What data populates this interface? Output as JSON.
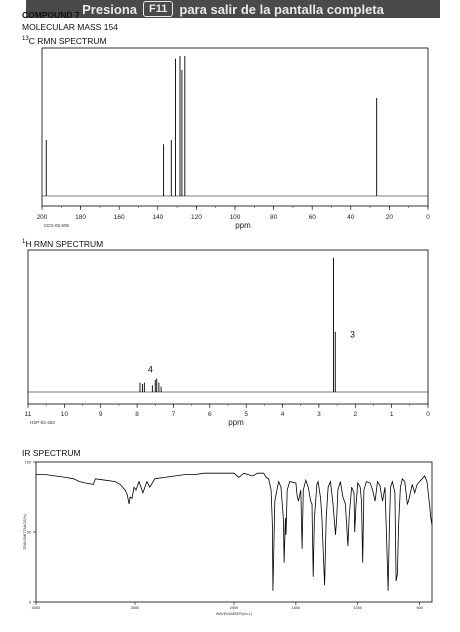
{
  "fullscreen_banner": {
    "prefix": "Presiona",
    "key": "F11",
    "suffix": "para salir de la pantalla completa"
  },
  "header": {
    "compound": "COMPOUND 7",
    "molecular_mass": "MOLECULAR MASS 154",
    "c13_sup": "13",
    "c13_title": "C RMN SPECTRUM",
    "h1_sup": "1",
    "h1_title": "H RMN SPECTRUM",
    "ir_title": "IR SPECTRUM"
  },
  "chart_data": [
    {
      "type": "line",
      "name": "13C NMR",
      "xlabel": "ppm",
      "xlim": [
        200,
        0
      ],
      "x_ticks": [
        200,
        180,
        160,
        140,
        120,
        100,
        80,
        60,
        40,
        20,
        0
      ],
      "code": "CDS-05-605",
      "peaks": [
        {
          "x": 197.8,
          "h": 0.4
        },
        {
          "x": 137.0,
          "h": 0.37
        },
        {
          "x": 133.0,
          "h": 0.4
        },
        {
          "x": 130.8,
          "h": 0.98
        },
        {
          "x": 128.5,
          "h": 1.0
        },
        {
          "x": 127.5,
          "h": 0.9
        },
        {
          "x": 126.0,
          "h": 1.0
        },
        {
          "x": 26.6,
          "h": 0.7
        }
      ],
      "grid": false
    },
    {
      "type": "line",
      "name": "1H NMR",
      "xlabel": "ppm",
      "xlim": [
        11,
        0
      ],
      "x_ticks": [
        11,
        10,
        9,
        8,
        7,
        6,
        5,
        4,
        3,
        2,
        1,
        0
      ],
      "code": "HSP-02-453",
      "peaks": [
        {
          "x": 7.92,
          "h": 0.07
        },
        {
          "x": 7.85,
          "h": 0.06
        },
        {
          "x": 7.8,
          "h": 0.07
        },
        {
          "x": 7.58,
          "h": 0.05
        },
        {
          "x": 7.5,
          "h": 0.09
        },
        {
          "x": 7.46,
          "h": 0.1
        },
        {
          "x": 7.4,
          "h": 0.07
        },
        {
          "x": 7.34,
          "h": 0.04
        },
        {
          "x": 2.6,
          "h": 1.0
        },
        {
          "x": 2.55,
          "h": 0.45
        }
      ],
      "annotations": [
        {
          "label": "4",
          "x": 7.8
        },
        {
          "label": "3",
          "x": 2.35
        }
      ],
      "grid": false
    },
    {
      "type": "line",
      "name": "IR",
      "xlim": [
        4000,
        400
      ],
      "ylim": [
        0,
        100
      ],
      "x_ticks": [
        4000,
        3000,
        2000,
        1500,
        1000,
        500
      ],
      "y_ticks": [
        0,
        50,
        100
      ],
      "xlabel": "WAVENUMBER(cm-1)",
      "ylabel": "TRANSMITTANCE(%)",
      "points": [
        [
          4000,
          91
        ],
        [
          3900,
          91
        ],
        [
          3800,
          90
        ],
        [
          3700,
          89
        ],
        [
          3620,
          88
        ],
        [
          3560,
          86
        ],
        [
          3500,
          85
        ],
        [
          3420,
          84
        ],
        [
          3400,
          88
        ],
        [
          3300,
          87
        ],
        [
          3200,
          86
        ],
        [
          3150,
          84
        ],
        [
          3100,
          80
        ],
        [
          3080,
          77
        ],
        [
          3060,
          70
        ],
        [
          3050,
          75
        ],
        [
          3030,
          74
        ],
        [
          3010,
          82
        ],
        [
          2990,
          80
        ],
        [
          2960,
          86
        ],
        [
          2920,
          78
        ],
        [
          2880,
          86
        ],
        [
          2850,
          82
        ],
        [
          2800,
          88
        ],
        [
          2700,
          89
        ],
        [
          2600,
          90
        ],
        [
          2500,
          91
        ],
        [
          2400,
          91
        ],
        [
          2300,
          92
        ],
        [
          2200,
          92
        ],
        [
          2100,
          92
        ],
        [
          2000,
          92
        ],
        [
          1960,
          89
        ],
        [
          1920,
          92
        ],
        [
          1850,
          90
        ],
        [
          1810,
          92
        ],
        [
          1760,
          92
        ],
        [
          1740,
          89
        ],
        [
          1720,
          88
        ],
        [
          1700,
          80
        ],
        [
          1690,
          55
        ],
        [
          1686,
          8
        ],
        [
          1680,
          30
        ],
        [
          1670,
          72
        ],
        [
          1640,
          86
        ],
        [
          1620,
          82
        ],
        [
          1600,
          58
        ],
        [
          1595,
          28
        ],
        [
          1585,
          60
        ],
        [
          1580,
          48
        ],
        [
          1570,
          80
        ],
        [
          1550,
          86
        ],
        [
          1500,
          85
        ],
        [
          1490,
          76
        ],
        [
          1480,
          72
        ],
        [
          1460,
          80
        ],
        [
          1450,
          38
        ],
        [
          1440,
          80
        ],
        [
          1420,
          87
        ],
        [
          1400,
          82
        ],
        [
          1380,
          72
        ],
        [
          1370,
          70
        ],
        [
          1360,
          18
        ],
        [
          1350,
          60
        ],
        [
          1330,
          84
        ],
        [
          1320,
          86
        ],
        [
          1300,
          74
        ],
        [
          1290,
          60
        ],
        [
          1268,
          12
        ],
        [
          1255,
          60
        ],
        [
          1240,
          82
        ],
        [
          1220,
          86
        ],
        [
          1200,
          70
        ],
        [
          1180,
          48
        ],
        [
          1170,
          60
        ],
        [
          1160,
          80
        ],
        [
          1140,
          86
        ],
        [
          1120,
          75
        ],
        [
          1100,
          70
        ],
        [
          1080,
          40
        ],
        [
          1070,
          60
        ],
        [
          1050,
          82
        ],
        [
          1030,
          78
        ],
        [
          1025,
          50
        ],
        [
          1015,
          68
        ],
        [
          1000,
          85
        ],
        [
          980,
          82
        ],
        [
          970,
          72
        ],
        [
          960,
          28
        ],
        [
          950,
          80
        ],
        [
          930,
          86
        ],
        [
          900,
          85
        ],
        [
          880,
          80
        ],
        [
          860,
          72
        ],
        [
          840,
          86
        ],
        [
          820,
          83
        ],
        [
          800,
          72
        ],
        [
          780,
          82
        ],
        [
          760,
          24
        ],
        [
          755,
          8
        ],
        [
          745,
          50
        ],
        [
          735,
          82
        ],
        [
          720,
          86
        ],
        [
          700,
          78
        ],
        [
          690,
          15
        ],
        [
          680,
          20
        ],
        [
          670,
          55
        ],
        [
          655,
          82
        ],
        [
          640,
          88
        ],
        [
          620,
          86
        ],
        [
          600,
          70
        ],
        [
          590,
          72
        ],
        [
          570,
          80
        ],
        [
          560,
          84
        ],
        [
          540,
          78
        ],
        [
          520,
          84
        ],
        [
          500,
          86
        ],
        [
          480,
          88
        ],
        [
          460,
          90
        ],
        [
          440,
          86
        ],
        [
          420,
          70
        ],
        [
          410,
          60
        ],
        [
          400,
          55
        ]
      ],
      "grid": false
    }
  ]
}
